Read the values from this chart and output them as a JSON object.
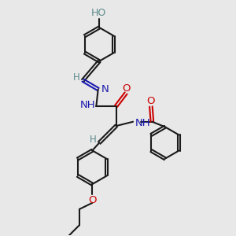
{
  "bg_color": "#e8e8e8",
  "bond_color": "#1a1a1a",
  "N_color": "#1a1ab0",
  "O_color": "#cc0000",
  "H_color": "#5c8a8a",
  "lw": 1.5,
  "fig_size": [
    3.0,
    3.0
  ],
  "dpi": 100,
  "xlim": [
    0,
    10
  ],
  "ylim": [
    0,
    10
  ]
}
